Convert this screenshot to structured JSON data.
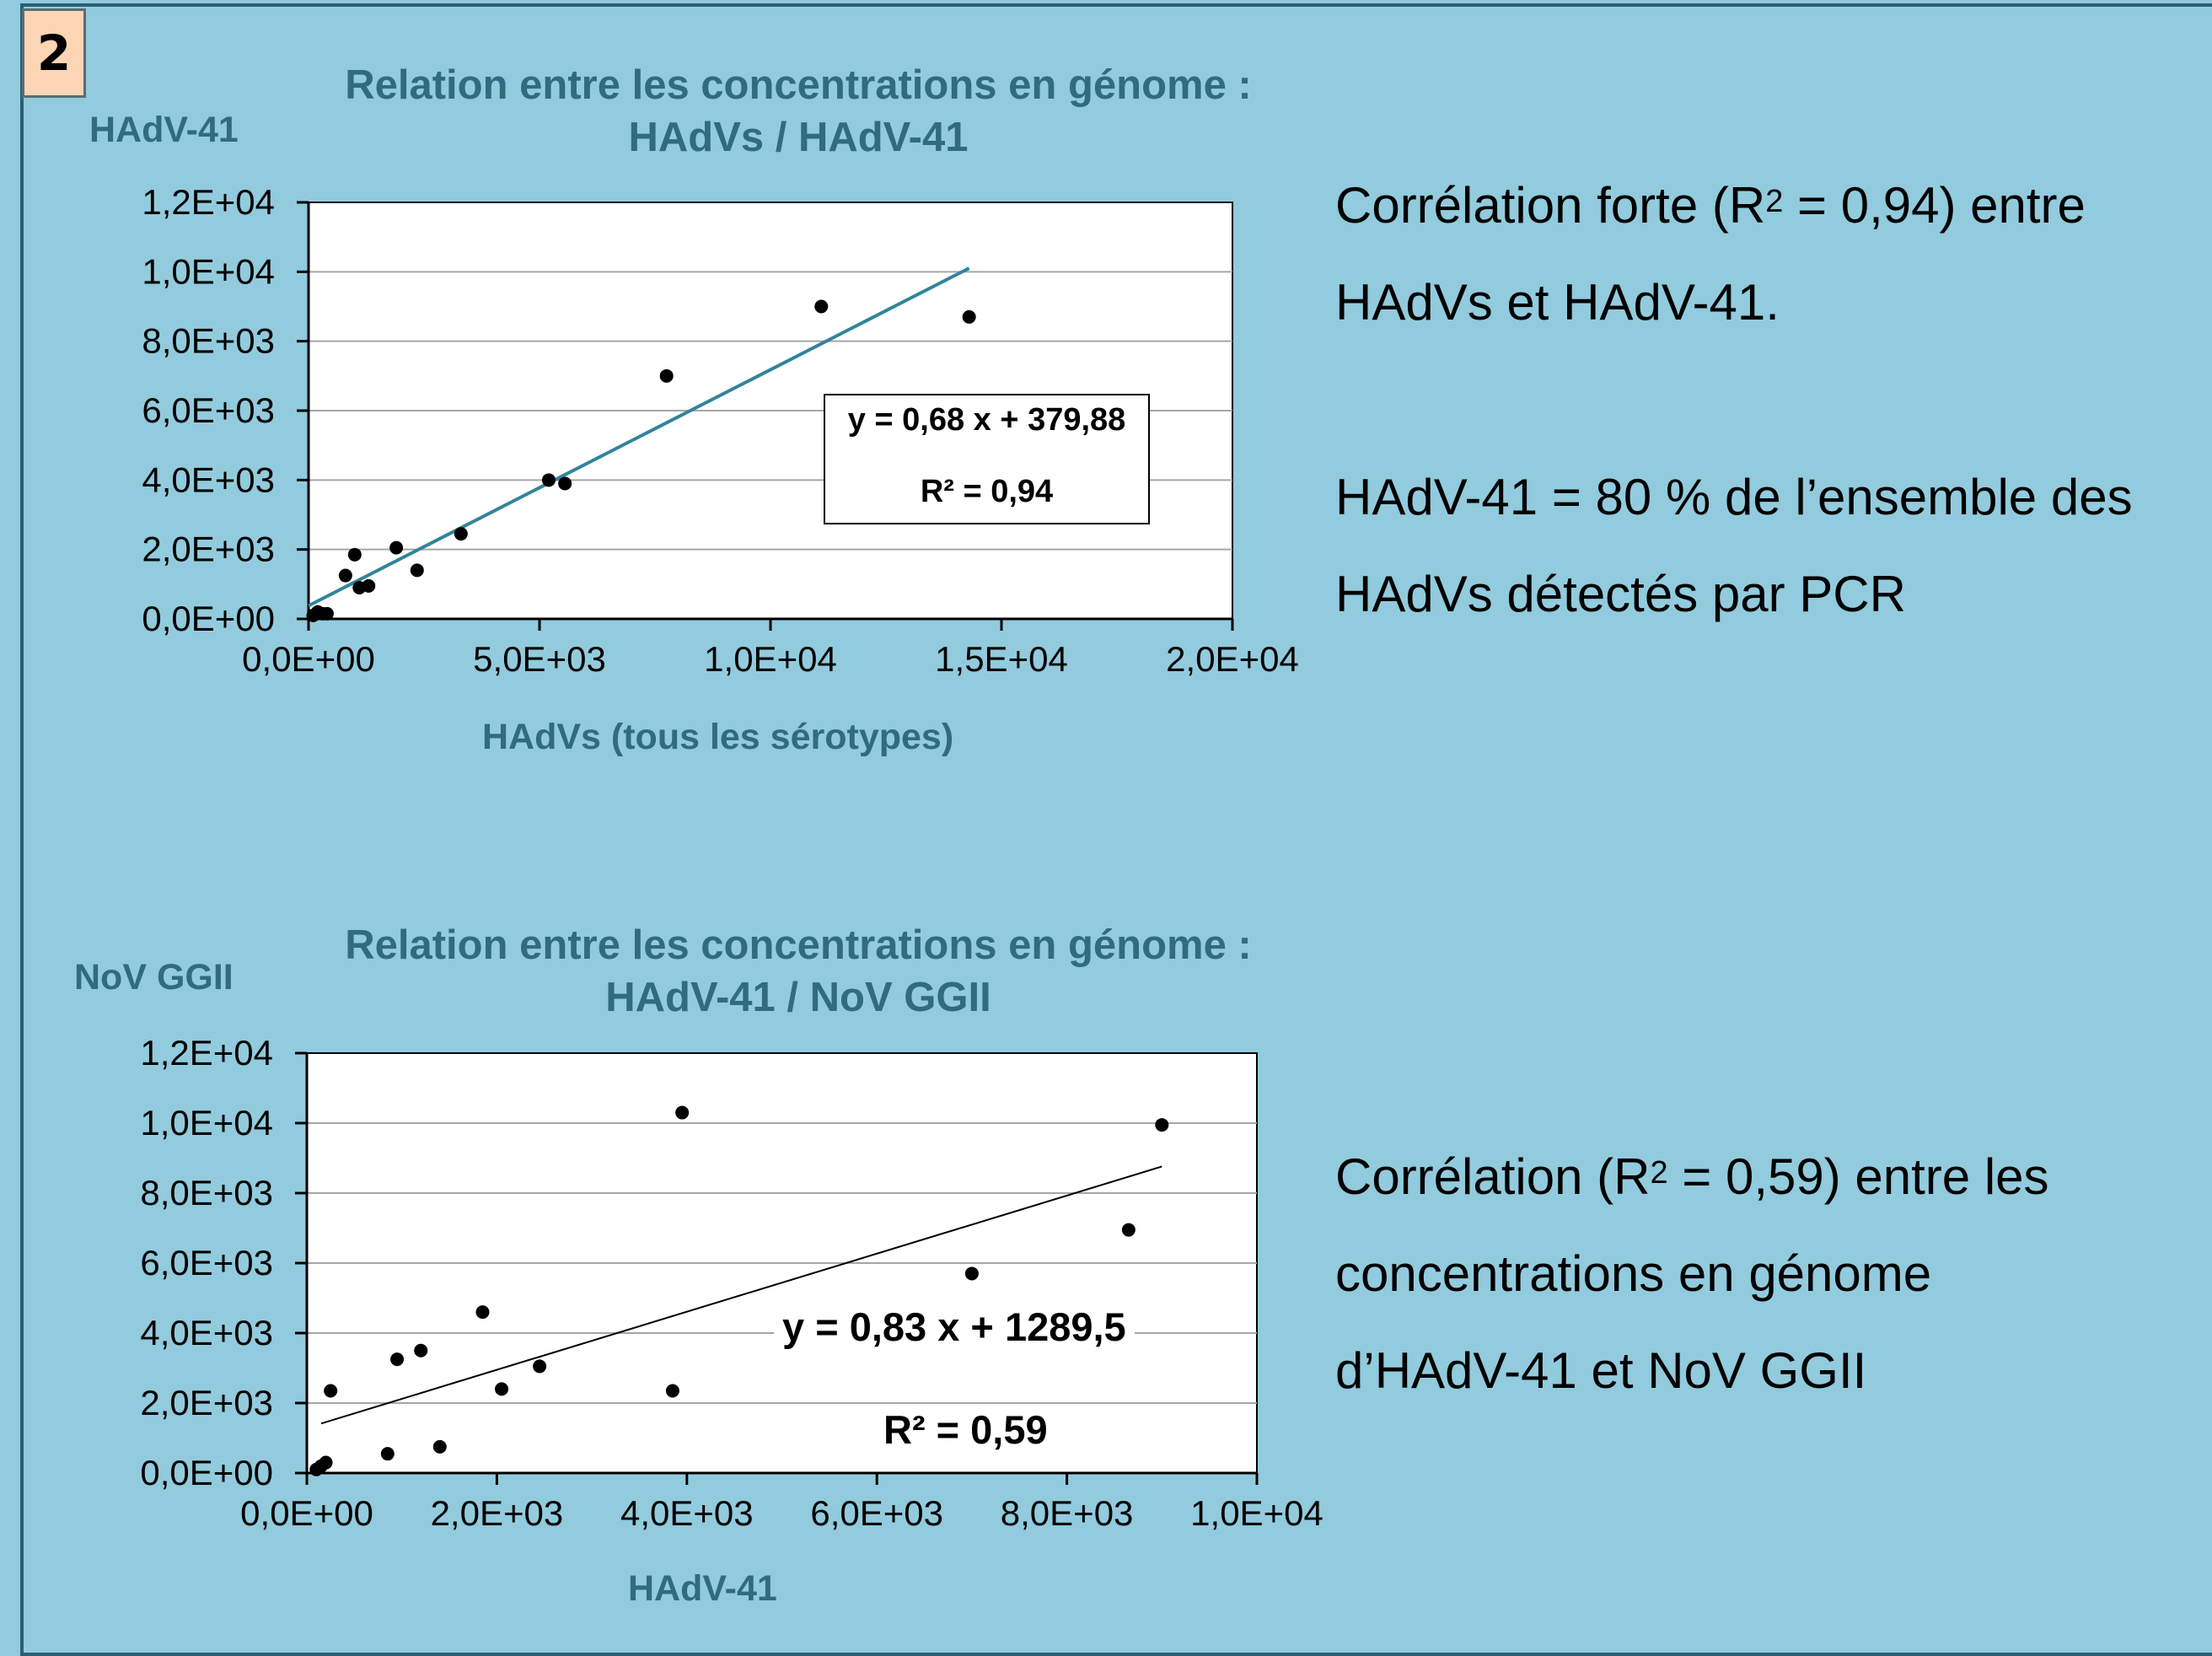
{
  "badge": "2",
  "charts": [
    {
      "title_line1": "Relation entre les concentrations en génome :",
      "title_line2": "HAdVs / HAdV-41",
      "ylabel": "HAdV-41",
      "xlabel": "HAdVs (tous les sérotypes)",
      "equation": "y = 0,68 x + 379,88",
      "r2": "R² = 0,94"
    },
    {
      "title_line1": "Relation entre les concentrations en génome :",
      "title_line2": "HAdV-41 / NoV GGII",
      "ylabel": "NoV GGII",
      "xlabel": "HAdV-41",
      "equation": "y = 0,83 x + 1289,5",
      "r2": "R² = 0,59"
    }
  ],
  "notes": {
    "first_line1_pre": "Corrélation forte (R",
    "first_sup": "2",
    "first_line1_post": " = 0,94) entre",
    "first_line2": "HAdVs et HAdV-41.",
    "second_line1": "HAdV-41 = 80 % de l’ensemble des",
    "second_line2": "HAdVs détectés par PCR",
    "third_line1_pre": "Corrélation (R",
    "third_sup": "2",
    "third_line1_post": " = 0,59) entre les",
    "third_line2": "concentrations en génome",
    "third_line3": "d’HAdV-41 et NoV GGII"
  },
  "colors": {
    "background": "#92CBDD",
    "title": "#2F6C7E",
    "trend1": "#31849B",
    "trend2": "#000000",
    "points": "#000000",
    "gridline": "#A6A6A6"
  },
  "chart_data": [
    {
      "type": "scatter",
      "xlim": [
        0,
        20000
      ],
      "ylim": [
        0,
        12000
      ],
      "xticks": [
        0,
        5000,
        10000,
        15000,
        20000
      ],
      "yticks": [
        0,
        2000,
        4000,
        6000,
        8000,
        10000,
        12000
      ],
      "xtick_labels": [
        "0,0E+00",
        "5,0E+03",
        "1,0E+04",
        "1,5E+04",
        "2,0E+04"
      ],
      "ytick_labels": [
        "0,0E+00",
        "2,0E+03",
        "4,0E+03",
        "6,0E+03",
        "8,0E+03",
        "1,0E+04",
        "1,2E+04"
      ],
      "grid": "horizontal",
      "points": [
        [
          100,
          100
        ],
        [
          200,
          200
        ],
        [
          300,
          150
        ],
        [
          400,
          150
        ],
        [
          800,
          1250
        ],
        [
          1000,
          1850
        ],
        [
          1100,
          900
        ],
        [
          1300,
          950
        ],
        [
          1900,
          2050
        ],
        [
          2350,
          1400
        ],
        [
          3300,
          2450
        ],
        [
          5200,
          4000
        ],
        [
          5550,
          3900
        ],
        [
          7750,
          7000
        ],
        [
          11100,
          9000
        ],
        [
          14300,
          8700
        ]
      ],
      "trendline": {
        "slope": 0.68,
        "intercept": 379.88,
        "x_range": [
          0,
          14300
        ]
      }
    },
    {
      "type": "scatter",
      "xlim": [
        0,
        10000
      ],
      "ylim": [
        0,
        12000
      ],
      "xticks": [
        0,
        2000,
        4000,
        6000,
        8000,
        10000
      ],
      "yticks": [
        0,
        2000,
        4000,
        6000,
        8000,
        10000,
        12000
      ],
      "xtick_labels": [
        "0,0E+00",
        "2,0E+03",
        "4,0E+03",
        "6,0E+03",
        "8,0E+03",
        "1,0E+04"
      ],
      "ytick_labels": [
        "0,0E+00",
        "2,0E+03",
        "4,0E+03",
        "6,0E+03",
        "8,0E+03",
        "1,0E+04",
        "1,2E+04"
      ],
      "grid": "horizontal",
      "points": [
        [
          100,
          100
        ],
        [
          150,
          200
        ],
        [
          200,
          300
        ],
        [
          250,
          2350
        ],
        [
          850,
          550
        ],
        [
          950,
          3250
        ],
        [
          1200,
          3500
        ],
        [
          1400,
          750
        ],
        [
          1850,
          4600
        ],
        [
          2050,
          2400
        ],
        [
          2450,
          3050
        ],
        [
          3850,
          2350
        ],
        [
          3950,
          10300
        ],
        [
          7000,
          5700
        ],
        [
          8650,
          6950
        ],
        [
          9000,
          9950
        ]
      ],
      "trendline": {
        "slope": 0.83,
        "intercept": 1289.5,
        "x_range": [
          150,
          9000
        ]
      }
    }
  ]
}
